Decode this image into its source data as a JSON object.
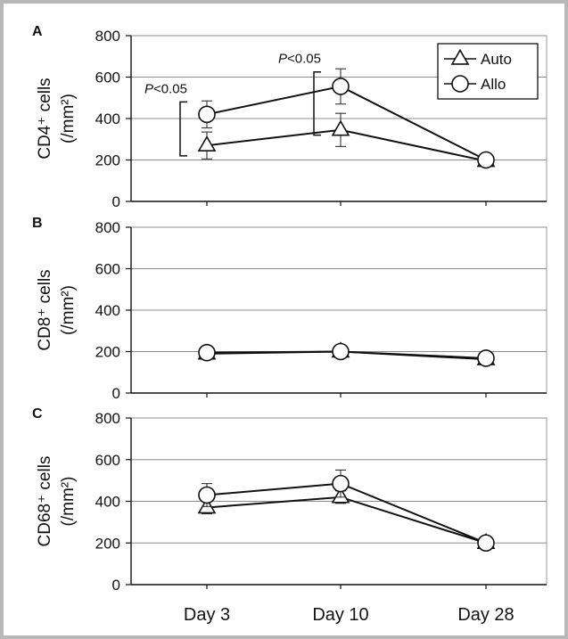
{
  "figure": {
    "x_categories": [
      "Day 3",
      "Day 10",
      "Day 28"
    ],
    "legend": {
      "position": "top-right",
      "entries": [
        "Auto",
        "Allo"
      ]
    }
  },
  "chart_data": [
    {
      "type": "line",
      "panel_label": "A",
      "ylabel": "CD4⁺ cells (/mm²)",
      "ylabel_top": "CD4⁺ cells",
      "ylabel_bottom": "(/mm²)",
      "categories": [
        "Day 3",
        "Day 10",
        "Day 28"
      ],
      "ylim": [
        0,
        800
      ],
      "yticks": [
        0,
        200,
        400,
        600,
        800
      ],
      "grid": true,
      "series": [
        {
          "name": "Auto",
          "marker": "triangle",
          "values": [
            270,
            345,
            195
          ],
          "errors": [
            65,
            80,
            15
          ]
        },
        {
          "name": "Allo",
          "marker": "circle",
          "values": [
            420,
            555,
            200
          ],
          "errors": [
            65,
            85,
            15
          ]
        }
      ],
      "annotations": [
        {
          "text_italic": "P",
          "text_rest": "<0.05",
          "category": "Day 3",
          "range": [
            220,
            480
          ]
        },
        {
          "text_italic": "P",
          "text_rest": "<0.05",
          "category": "Day 10",
          "range": [
            320,
            625
          ]
        }
      ],
      "legend": {
        "position": "top-right",
        "entries": [
          "Auto",
          "Allo"
        ]
      }
    },
    {
      "type": "line",
      "panel_label": "B",
      "ylabel": "CD8⁺ cells (/mm²)",
      "ylabel_top": "CD8⁺ cells",
      "ylabel_bottom": "(/mm²)",
      "categories": [
        "Day 3",
        "Day 10",
        "Day 28"
      ],
      "ylim": [
        0,
        800
      ],
      "yticks": [
        0,
        200,
        400,
        600,
        800
      ],
      "grid": true,
      "series": [
        {
          "name": "Auto",
          "marker": "triangle",
          "values": [
            190,
            200,
            163
          ],
          "errors": [
            20,
            20,
            20
          ]
        },
        {
          "name": "Allo",
          "marker": "circle",
          "values": [
            195,
            200,
            168
          ],
          "errors": [
            20,
            20,
            20
          ]
        }
      ]
    },
    {
      "type": "line",
      "panel_label": "C",
      "ylabel": "CD68⁺ cells (/mm²)",
      "ylabel_top": "CD68⁺ cells",
      "ylabel_bottom": "(/mm²)",
      "categories": [
        "Day 3",
        "Day 10",
        "Day 28"
      ],
      "ylim": [
        0,
        800
      ],
      "yticks": [
        0,
        200,
        400,
        600,
        800
      ],
      "grid": true,
      "series": [
        {
          "name": "Auto",
          "marker": "triangle",
          "values": [
            370,
            420,
            200
          ],
          "errors": [
            30,
            30,
            15
          ]
        },
        {
          "name": "Allo",
          "marker": "circle",
          "values": [
            430,
            485,
            200
          ],
          "errors": [
            55,
            65,
            15
          ]
        }
      ]
    }
  ]
}
